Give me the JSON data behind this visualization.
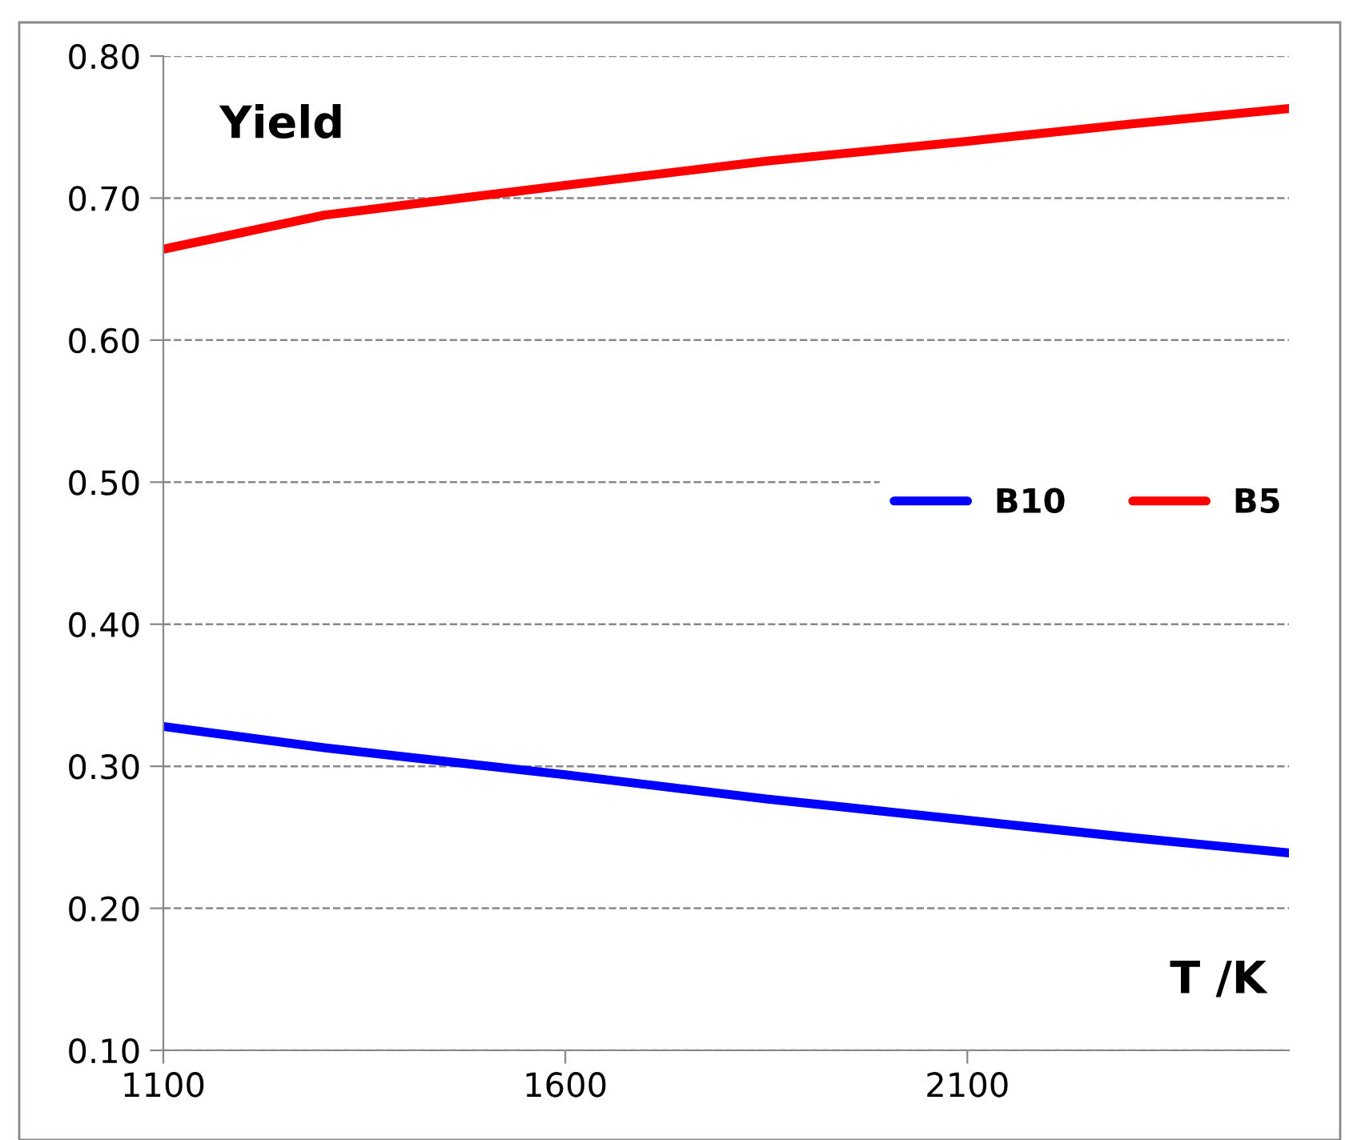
{
  "chart_data": {
    "type": "line",
    "xlabel": "T /K",
    "ylabel": "Yield",
    "x": [
      1100,
      1300,
      1600,
      1850,
      2100,
      2300,
      2500
    ],
    "series": [
      {
        "name": "B10",
        "color": "#0000ff",
        "values": [
          0.328,
          0.313,
          0.294,
          0.277,
          0.262,
          0.25,
          0.239
        ]
      },
      {
        "name": "B5",
        "color": "#ff0000",
        "values": [
          0.664,
          0.688,
          0.709,
          0.726,
          0.74,
          0.752,
          0.763
        ]
      }
    ],
    "xlim": [
      1100,
      2500
    ],
    "xticks": [
      1100,
      1600,
      2100
    ],
    "ylim": [
      0.1,
      0.8
    ],
    "yticks": [
      {
        "value": 0.1,
        "label": "0.10"
      },
      {
        "value": 0.2,
        "label": "0.20"
      },
      {
        "value": 0.3,
        "label": "0.30"
      },
      {
        "value": 0.4,
        "label": "0.40"
      },
      {
        "value": 0.5,
        "label": "0.50"
      },
      {
        "value": 0.6,
        "label": "0.60"
      },
      {
        "value": 0.7,
        "label": "0.70"
      },
      {
        "value": 0.8,
        "label": "0.80"
      }
    ],
    "grid": "y",
    "legend": "right",
    "marker": "none",
    "line_style": "solid"
  }
}
